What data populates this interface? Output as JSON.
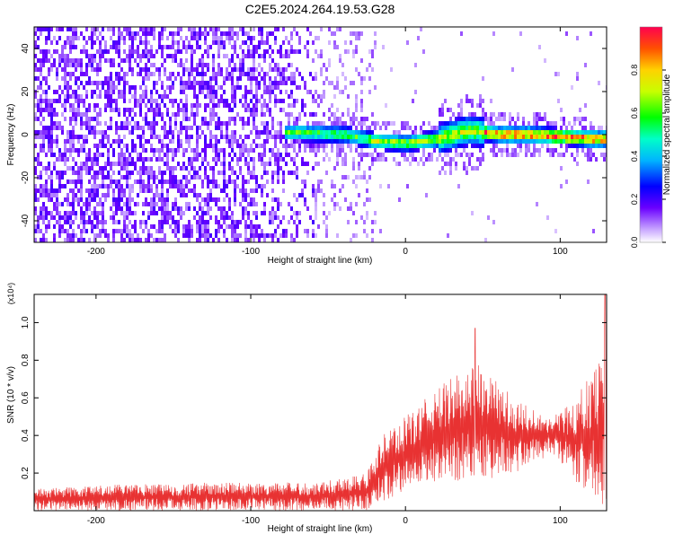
{
  "page_title": "C2E5.2024.264.19.53.G28",
  "chart_data": [
    {
      "type": "heatmap",
      "xlabel": "Height of straight line (km)",
      "ylabel": "Frequency (Hz)",
      "xlim": [
        -240,
        130
      ],
      "ylim": [
        -50,
        50
      ],
      "xticks": [
        -200,
        -100,
        0,
        100
      ],
      "yticks": [
        -40,
        -20,
        0,
        20,
        40
      ],
      "colorbar": {
        "label": "Normalized spectral amplitude",
        "range": [
          0,
          1
        ],
        "ticks": [
          0.0,
          0.2,
          0.4,
          0.6,
          0.8
        ]
      },
      "ridge": {
        "x_start": -78,
        "center_freq_hz": [
          {
            "x": -70,
            "f": 2
          },
          {
            "x": -40,
            "f": 1
          },
          {
            "x": -20,
            "f": -2
          },
          {
            "x": 0,
            "f": -3
          },
          {
            "x": 20,
            "f": -1
          },
          {
            "x": 40,
            "f": 3
          },
          {
            "x": 60,
            "f": 1
          },
          {
            "x": 80,
            "f": 1
          },
          {
            "x": 100,
            "f": 0
          },
          {
            "x": 120,
            "f": -1
          }
        ]
      }
    },
    {
      "type": "line",
      "xlabel": "Height of straight line (km)",
      "ylabel": "SNR (10 * v/v)",
      "y_multiplier": "(x10⁴)",
      "xlim": [
        -240,
        130
      ],
      "ylim": [
        0,
        1.15
      ],
      "xticks": [
        -200,
        -100,
        0,
        100
      ],
      "yticks": [
        0.2,
        0.4,
        0.6,
        0.8,
        1.0
      ],
      "series": [
        {
          "color": "#e83232",
          "envelope": [
            {
              "x": -240,
              "lo": 0.0,
              "hi": 0.12
            },
            {
              "x": -180,
              "lo": 0.0,
              "hi": 0.14
            },
            {
              "x": -120,
              "lo": 0.0,
              "hi": 0.15
            },
            {
              "x": -60,
              "lo": 0.0,
              "hi": 0.15
            },
            {
              "x": -25,
              "lo": 0.0,
              "hi": 0.2
            },
            {
              "x": -15,
              "lo": 0.05,
              "hi": 0.4
            },
            {
              "x": 0,
              "lo": 0.1,
              "hi": 0.5
            },
            {
              "x": 20,
              "lo": 0.15,
              "hi": 0.65
            },
            {
              "x": 45,
              "lo": 0.15,
              "hi": 0.8
            },
            {
              "x": 70,
              "lo": 0.2,
              "hi": 0.6
            },
            {
              "x": 95,
              "lo": 0.3,
              "hi": 0.5
            },
            {
              "x": 110,
              "lo": 0.15,
              "hi": 0.6
            },
            {
              "x": 125,
              "lo": 0.05,
              "hi": 0.8
            },
            {
              "x": 130,
              "lo": 0.0,
              "hi": 1.05
            }
          ],
          "peaks": [
            {
              "x": 45,
              "y": 0.97
            },
            {
              "x": 129,
              "y": 1.15
            }
          ]
        }
      ]
    }
  ]
}
